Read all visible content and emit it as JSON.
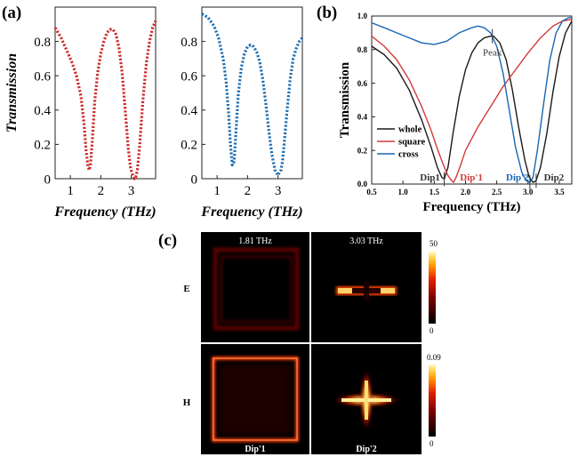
{
  "panel_labels": {
    "a": "(a)",
    "b": "(b)",
    "c": "(c)"
  },
  "colors": {
    "red": "#cc2b2b",
    "blue": "#1f6fb2",
    "black": "#1a1a1a",
    "cross_blue": "#1866b4",
    "square_red": "#d23a3a"
  },
  "chart_data": [
    {
      "id": "a-left",
      "type": "scatter",
      "style": "dotted line",
      "xlabel": "Frequency (THz)",
      "ylabel": "Transmission",
      "xlim": [
        0.5,
        3.8
      ],
      "ylim": [
        0,
        1.0
      ],
      "xticks": [
        1,
        2,
        3
      ],
      "yticks": [
        0,
        0.2,
        0.4,
        0.6,
        0.8
      ],
      "ytick_labels": [
        "0",
        "0.2",
        "0.4",
        "0.6",
        "0.8"
      ],
      "series": [
        {
          "color": "#cc2b2b",
          "x": [
            0.5,
            0.7,
            0.9,
            1.05,
            1.2,
            1.35,
            1.45,
            1.52,
            1.58,
            1.62,
            1.66,
            1.72,
            1.8,
            1.9,
            2.0,
            2.1,
            2.2,
            2.3,
            2.4,
            2.5,
            2.6,
            2.7,
            2.8,
            2.9,
            2.98,
            3.05,
            3.1,
            3.15,
            3.2,
            3.28,
            3.38,
            3.5,
            3.6,
            3.7,
            3.8
          ],
          "y": [
            0.88,
            0.82,
            0.74,
            0.68,
            0.6,
            0.48,
            0.32,
            0.16,
            0.07,
            0.05,
            0.08,
            0.22,
            0.45,
            0.62,
            0.73,
            0.8,
            0.85,
            0.87,
            0.87,
            0.84,
            0.76,
            0.62,
            0.4,
            0.18,
            0.06,
            0.02,
            0.0,
            0.01,
            0.05,
            0.2,
            0.45,
            0.68,
            0.8,
            0.88,
            0.92
          ]
        }
      ]
    },
    {
      "id": "a-right",
      "type": "scatter",
      "style": "dotted line",
      "xlabel": "Frequency (THz)",
      "ylabel": "",
      "xlim": [
        0.5,
        3.8
      ],
      "ylim": [
        0,
        1.0
      ],
      "xticks": [
        1,
        2,
        3
      ],
      "yticks": [
        0,
        0.2,
        0.4,
        0.6,
        0.8
      ],
      "ytick_labels": [
        "0",
        "0.2",
        "0.4",
        "0.6",
        "0.8"
      ],
      "series": [
        {
          "color": "#1f6fb2",
          "x": [
            0.5,
            0.7,
            0.9,
            1.05,
            1.2,
            1.3,
            1.38,
            1.44,
            1.5,
            1.56,
            1.62,
            1.7,
            1.8,
            1.9,
            2.0,
            2.1,
            2.2,
            2.3,
            2.4,
            2.5,
            2.6,
            2.7,
            2.8,
            2.9,
            3.0,
            3.1,
            3.15,
            3.2,
            3.3,
            3.4,
            3.5,
            3.6,
            3.7,
            3.8
          ],
          "y": [
            0.96,
            0.94,
            0.89,
            0.82,
            0.7,
            0.56,
            0.38,
            0.2,
            0.08,
            0.1,
            0.28,
            0.5,
            0.65,
            0.73,
            0.77,
            0.78,
            0.77,
            0.74,
            0.68,
            0.58,
            0.44,
            0.28,
            0.14,
            0.05,
            0.02,
            0.05,
            0.1,
            0.2,
            0.4,
            0.58,
            0.7,
            0.76,
            0.8,
            0.82
          ]
        }
      ]
    },
    {
      "id": "b",
      "type": "line",
      "xlabel": "Frequency (THz)",
      "ylabel": "Transmission",
      "xlim": [
        0.5,
        3.7
      ],
      "ylim": [
        0,
        1.0
      ],
      "xticks": [
        0.5,
        1.0,
        1.5,
        2.0,
        2.5,
        3.0,
        3.5
      ],
      "xtick_labels": [
        "0.5",
        "1.0",
        "1.5",
        "2.0",
        "2.5",
        "3.0",
        "3.5"
      ],
      "yticks": [
        0,
        0.2,
        0.4,
        0.6,
        0.8,
        1.0
      ],
      "ytick_labels": [
        "0.0",
        "0.2",
        "0.4",
        "0.6",
        "0.8",
        "1.0"
      ],
      "legend_position": "lower-left",
      "series": [
        {
          "name": "whole",
          "color": "#1a1a1a",
          "x": [
            0.5,
            0.7,
            0.9,
            1.1,
            1.3,
            1.45,
            1.55,
            1.62,
            1.66,
            1.72,
            1.8,
            1.9,
            2.0,
            2.1,
            2.2,
            2.3,
            2.4,
            2.45,
            2.55,
            2.65,
            2.75,
            2.85,
            2.95,
            3.02,
            3.08,
            3.13,
            3.2,
            3.3,
            3.4,
            3.5,
            3.6,
            3.7
          ],
          "y": [
            0.82,
            0.77,
            0.69,
            0.56,
            0.38,
            0.22,
            0.1,
            0.04,
            0.03,
            0.1,
            0.3,
            0.52,
            0.68,
            0.78,
            0.84,
            0.87,
            0.88,
            0.88,
            0.84,
            0.74,
            0.56,
            0.34,
            0.14,
            0.04,
            0.01,
            0.02,
            0.1,
            0.3,
            0.55,
            0.76,
            0.9,
            0.97
          ]
        },
        {
          "name": "square",
          "color": "#d23a3a",
          "x": [
            0.5,
            0.7,
            0.9,
            1.1,
            1.3,
            1.45,
            1.55,
            1.65,
            1.72,
            1.78,
            1.81,
            1.85,
            1.92,
            2.0,
            2.2,
            2.4,
            2.6,
            2.8,
            3.0,
            3.2,
            3.4,
            3.55,
            3.7
          ],
          "y": [
            0.88,
            0.82,
            0.74,
            0.62,
            0.46,
            0.32,
            0.21,
            0.11,
            0.05,
            0.02,
            0.01,
            0.04,
            0.11,
            0.2,
            0.34,
            0.46,
            0.58,
            0.68,
            0.78,
            0.87,
            0.94,
            0.97,
            0.98
          ]
        },
        {
          "name": "cross",
          "color": "#1866b4",
          "x": [
            0.5,
            0.7,
            0.9,
            1.1,
            1.3,
            1.5,
            1.7,
            1.9,
            2.1,
            2.2,
            2.3,
            2.4,
            2.5,
            2.6,
            2.7,
            2.8,
            2.9,
            2.97,
            3.03,
            3.08,
            3.15,
            3.25,
            3.35,
            3.45,
            3.55,
            3.65,
            3.7
          ],
          "y": [
            0.96,
            0.93,
            0.9,
            0.87,
            0.84,
            0.83,
            0.85,
            0.9,
            0.93,
            0.94,
            0.93,
            0.9,
            0.82,
            0.66,
            0.44,
            0.22,
            0.07,
            0.02,
            0.01,
            0.04,
            0.2,
            0.48,
            0.74,
            0.9,
            0.97,
            0.99,
            0.99
          ]
        }
      ],
      "annotations": [
        {
          "text": "Peak",
          "x": 2.43,
          "y": 0.88,
          "color": "#333333"
        },
        {
          "text": "Dip1",
          "x": 1.66,
          "y": 0.03,
          "color": "#333333"
        },
        {
          "text": "Dip'1",
          "x": 1.81,
          "y": 0.01,
          "color": "#d23a3a"
        },
        {
          "text": "Dip'2",
          "x": 3.03,
          "y": 0.01,
          "color": "#1866b4"
        },
        {
          "text": "Dip2",
          "x": 3.13,
          "y": 0.02,
          "color": "#333333"
        }
      ]
    },
    {
      "id": "c",
      "type": "heatmap",
      "columns": [
        "1.81 THz",
        "3.03 THz"
      ],
      "rows": [
        "E",
        "H"
      ],
      "bottom_labels": [
        "Dip'1",
        "Dip'2"
      ],
      "colorbars": [
        {
          "row": "E",
          "max": "50",
          "min": "0"
        },
        {
          "row": "H",
          "max": "0.09",
          "min": "0"
        }
      ]
    }
  ]
}
